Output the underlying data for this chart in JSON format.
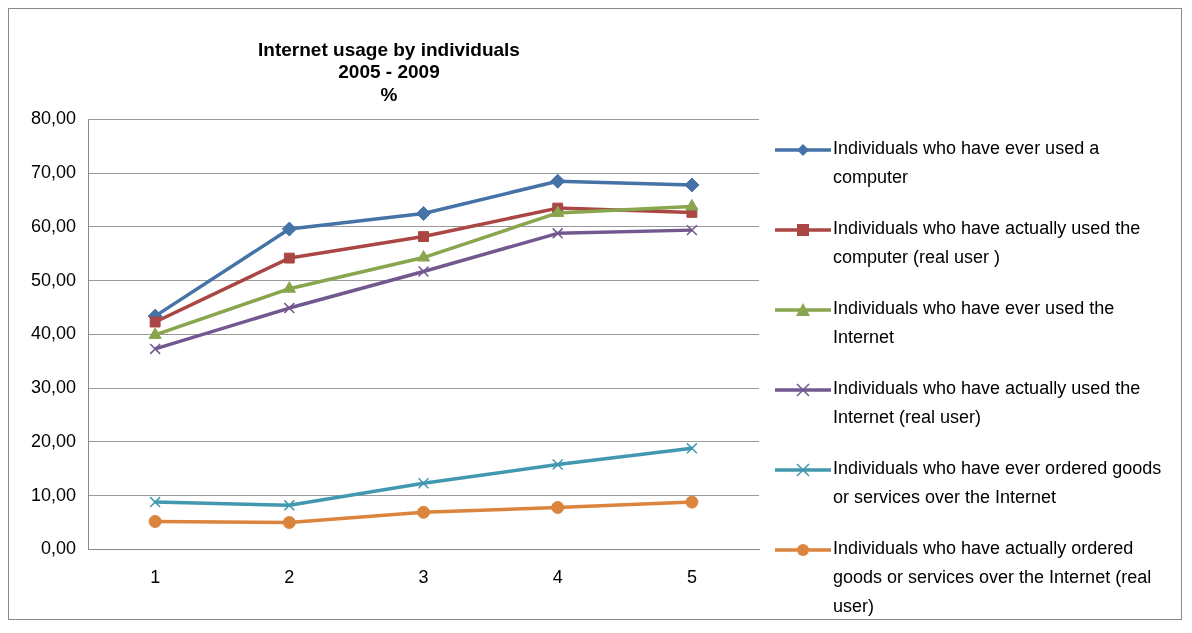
{
  "chart_data": {
    "type": "line",
    "title": "Internet usage by individuals\n2005 - 2009\n%",
    "categories": [
      "1",
      "2",
      "3",
      "4",
      "5"
    ],
    "series": [
      {
        "name": "Individuals who have ever used a computer",
        "color": "#4572a7",
        "marker": "diamond",
        "values": [
          43.4,
          59.6,
          62.5,
          68.5,
          67.8
        ]
      },
      {
        "name": "Individuals who have actually used the computer (real user )",
        "color": "#aa4643",
        "marker": "square",
        "values": [
          42.3,
          54.2,
          58.2,
          63.5,
          62.7
        ]
      },
      {
        "name": "Individuals who have ever used the Internet",
        "color": "#89a54e",
        "marker": "triangle",
        "values": [
          39.9,
          48.5,
          54.3,
          62.6,
          63.8
        ]
      },
      {
        "name": "Individuals who have actually used the Internet (real user)",
        "color": "#71588f",
        "marker": "cross",
        "values": [
          37.3,
          44.9,
          51.7,
          58.8,
          59.4
        ]
      },
      {
        "name": "Individuals who have ever ordered goods or services over the Internet",
        "color": "#4198af",
        "marker": "cross",
        "values": [
          8.8,
          8.2,
          12.3,
          15.8,
          18.8
        ]
      },
      {
        "name": "Individuals who have actually ordered goods or services over the Internet (real user)",
        "color": "#db843d",
        "marker": "circle",
        "values": [
          5.2,
          5.0,
          6.9,
          7.8,
          8.8
        ]
      }
    ],
    "ylim": [
      0,
      80
    ],
    "yticks": [
      {
        "value": 0,
        "label": "0,00"
      },
      {
        "value": 10,
        "label": "10,00"
      },
      {
        "value": 20,
        "label": "20,00"
      },
      {
        "value": 30,
        "label": "30,00"
      },
      {
        "value": 40,
        "label": "40,00"
      },
      {
        "value": 50,
        "label": "50,00"
      },
      {
        "value": 60,
        "label": "60,00"
      },
      {
        "value": 70,
        "label": "70,00"
      },
      {
        "value": 80,
        "label": "80,00"
      }
    ],
    "grid": "y",
    "legend": "right"
  }
}
